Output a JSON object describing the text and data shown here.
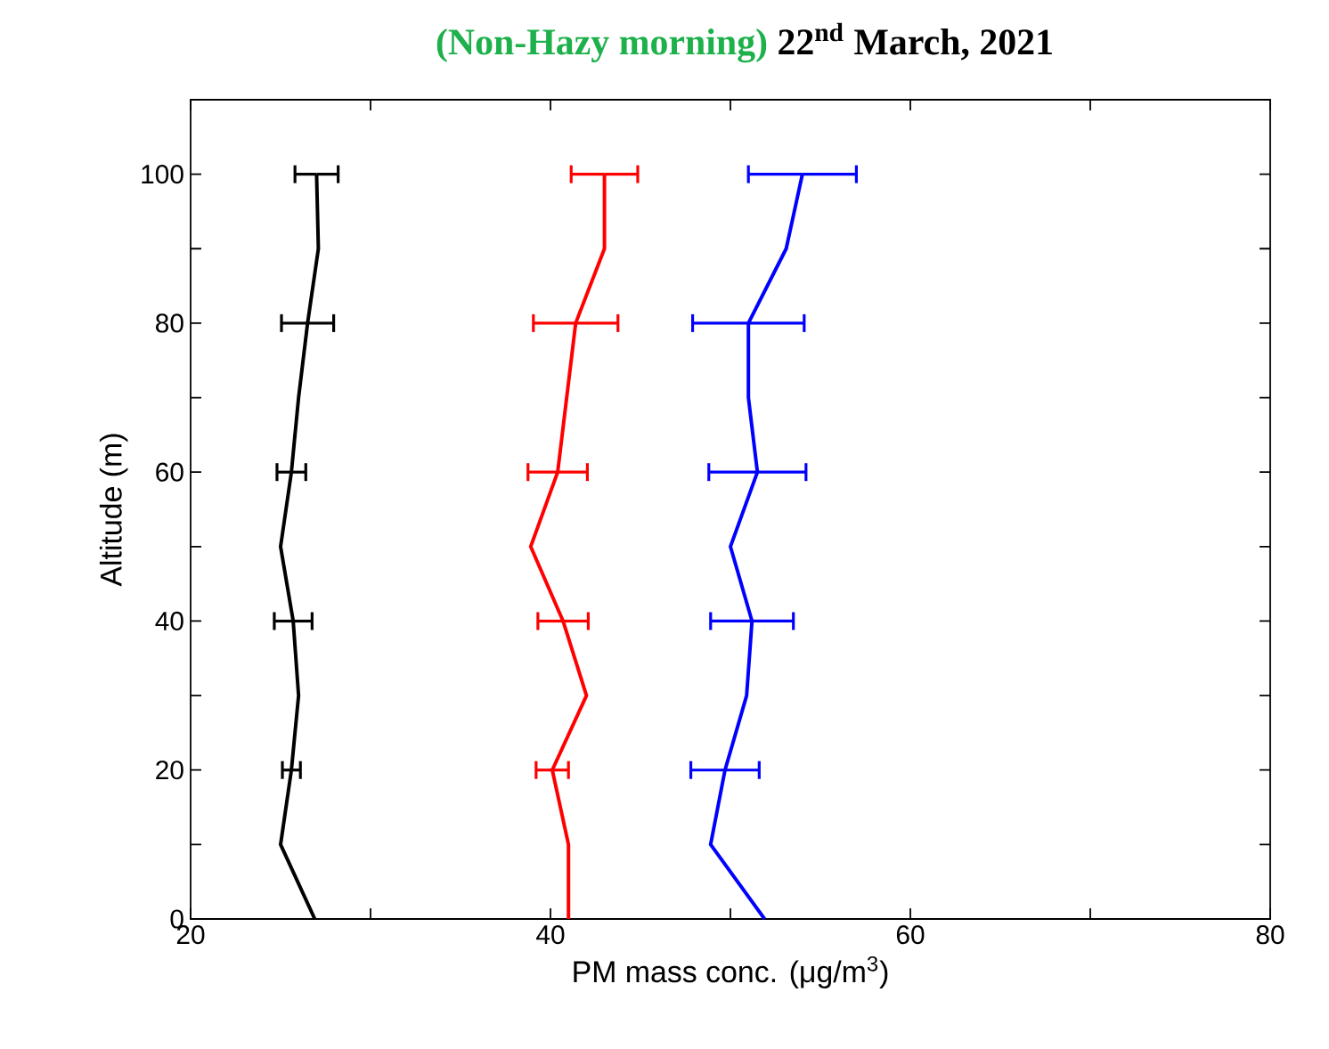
{
  "chart_data": {
    "type": "line",
    "title": "(Non-Hazy morning)",
    "subtitle": "22$^{nd}$ March, 2021",
    "xlabel": "PM mass conc. (μg/m$^{3}$)",
    "ylabel": "Altitude (m)",
    "xlim": [
      20,
      80
    ],
    "xticks": [
      20,
      {
        "value": 30,
        "label": null
      },
      40,
      {
        "value": 50,
        "label": null
      },
      60,
      {
        "value": 70,
        "label": null
      },
      80
    ],
    "ylim": [
      0,
      110
    ],
    "yticks": [
      0,
      {
        "value": 10,
        "label": null
      },
      20,
      {
        "value": 30,
        "label": null
      },
      40,
      {
        "value": 50,
        "label": null
      },
      60,
      {
        "value": 70,
        "label": null
      },
      80,
      {
        "value": 90,
        "label": null
      },
      100
    ],
    "marker": "none",
    "line_style": "solid",
    "series": [
      {
        "color": "#000000",
        "x": [
          26.9,
          25.0,
          25.6,
          26.0,
          25.7,
          25.0,
          25.6,
          26.0,
          26.5,
          27.1,
          27.0
        ],
        "values": [
          0,
          10,
          20,
          30,
          40,
          50,
          60,
          70,
          80,
          90,
          100
        ],
        "xerrors": [
          null,
          null,
          0.5,
          null,
          1.05,
          null,
          0.8,
          null,
          1.45,
          null,
          1.2
        ]
      },
      {
        "color": "#ff0000",
        "x": [
          41.0,
          41.0,
          40.1,
          42.0,
          40.7,
          38.9,
          40.4,
          40.9,
          41.4,
          43.0,
          43.0
        ],
        "values": [
          0,
          10,
          20,
          30,
          40,
          50,
          60,
          70,
          80,
          90,
          100
        ],
        "xerrors": [
          null,
          null,
          0.9,
          null,
          1.4,
          null,
          1.65,
          null,
          2.35,
          null,
          1.85
        ]
      },
      {
        "color": "#0000ff",
        "x": [
          51.9,
          48.9,
          49.7,
          50.9,
          51.2,
          50.0,
          51.5,
          51.0,
          51.0,
          53.1,
          54.0
        ],
        "values": [
          0,
          10,
          20,
          30,
          40,
          50,
          60,
          70,
          80,
          90,
          100
        ],
        "xerrors": [
          null,
          null,
          1.9,
          null,
          2.3,
          null,
          2.7,
          null,
          3.1,
          null,
          3.0
        ]
      }
    ]
  }
}
